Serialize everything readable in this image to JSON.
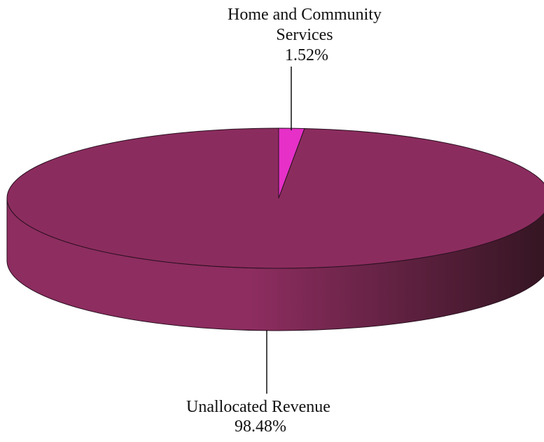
{
  "chart_data": {
    "type": "pie",
    "title": "",
    "slices": [
      {
        "label_lines": [
          "Home and Community",
          "Services"
        ],
        "percent_label": "1.52%",
        "value": 1.52,
        "color": "#e630c8"
      },
      {
        "label_lines": [
          "Unallocated Revenue"
        ],
        "percent_label": "98.48%",
        "value": 98.48,
        "color": "#8b2c5e"
      }
    ],
    "style": {
      "three_d": true,
      "side_color_light": "#8d2d60",
      "side_color_dark": "#331521",
      "edge_color": "#2a1020"
    }
  }
}
